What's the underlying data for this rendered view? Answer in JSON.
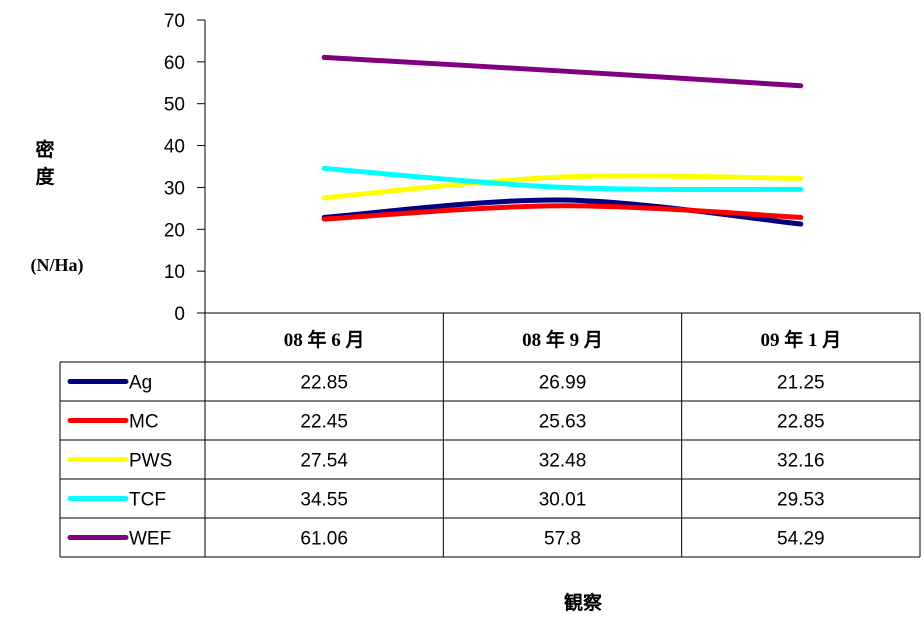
{
  "chart_data": {
    "type": "line",
    "ylabel": "密度",
    "yunit": "(N/Ha)",
    "xlabel": "観察",
    "ylim": [
      0,
      70
    ],
    "yticks": [
      0,
      10,
      20,
      30,
      40,
      50,
      60,
      70
    ],
    "categories": [
      "08 年 6 月",
      "08 年 9 月",
      "09 年 1 月"
    ],
    "series": [
      {
        "name": "Ag",
        "color": "#000080",
        "values": [
          22.85,
          26.99,
          21.25
        ]
      },
      {
        "name": "MC",
        "color": "#ff0000",
        "values": [
          22.45,
          25.63,
          22.85
        ]
      },
      {
        "name": "PWS",
        "color": "#ffff00",
        "values": [
          27.54,
          32.48,
          32.16
        ]
      },
      {
        "name": "TCF",
        "color": "#00ffff",
        "values": [
          34.55,
          30.01,
          29.53
        ]
      },
      {
        "name": "WEF",
        "color": "#800080",
        "values": [
          61.06,
          57.8,
          54.29
        ]
      }
    ],
    "grid": false,
    "data_table": true
  }
}
